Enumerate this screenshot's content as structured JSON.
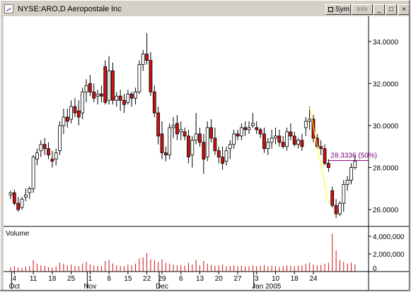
{
  "window": {
    "title": "NYSE:ARO,D Aeropostale Inc",
    "buttons": {
      "sym": "Sym",
      "intv": "Intv",
      "minimize": "_",
      "maximize": "□",
      "close": "×"
    }
  },
  "colors": {
    "up": "#ffffff",
    "down": "#cc1111",
    "outline": "#000000",
    "trendline": "#ffff00",
    "level": "#800080",
    "volume": "#cc1111"
  },
  "chart_data": {
    "type": "candlestick",
    "symbol": "NYSE:ARO,D Aeropostale Inc",
    "y_ticks": [
      "34.0000",
      "32.0000",
      "30.0000",
      "28.0000",
      "26.0000"
    ],
    "y_tick_values": [
      34,
      32,
      30,
      28,
      26
    ],
    "ylim": [
      25.2,
      35.2
    ],
    "x_day_labels": [
      "4",
      "11",
      "18",
      "25",
      "1",
      "8",
      "15",
      "22",
      "29",
      "6",
      "13",
      "20",
      "27",
      "3",
      "10",
      "18",
      "24"
    ],
    "x_day_index": [
      1,
      6,
      11,
      16,
      21,
      26,
      31,
      36,
      40,
      45,
      50,
      55,
      60,
      65,
      70,
      75,
      80
    ],
    "x_month_labels": [
      "Oct",
      "Nov",
      "Dec",
      "Jan 2005"
    ],
    "x_month_index": [
      1,
      21,
      40,
      65
    ],
    "candles": [
      [
        26.7,
        26.9,
        26.5,
        26.8
      ],
      [
        26.8,
        26.95,
        26.2,
        26.3
      ],
      [
        26.3,
        26.6,
        25.9,
        26.0
      ],
      [
        26.1,
        26.6,
        26.0,
        26.5
      ],
      [
        26.6,
        27.0,
        26.4,
        26.7
      ],
      [
        26.8,
        27.1,
        26.5,
        27.0
      ],
      [
        27.0,
        28.6,
        26.8,
        28.5
      ],
      [
        28.4,
        28.9,
        28.1,
        28.7
      ],
      [
        28.8,
        29.3,
        28.5,
        29.1
      ],
      [
        29.1,
        29.4,
        28.6,
        28.9
      ],
      [
        28.9,
        29.2,
        28.4,
        28.6
      ],
      [
        28.4,
        28.8,
        28.0,
        28.3
      ],
      [
        28.4,
        28.9,
        28.1,
        28.7
      ],
      [
        28.8,
        30.2,
        28.6,
        30.0
      ],
      [
        30.0,
        30.8,
        29.6,
        30.4
      ],
      [
        30.4,
        30.8,
        29.9,
        30.2
      ],
      [
        30.3,
        31.2,
        30.1,
        30.9
      ],
      [
        30.9,
        31.3,
        30.4,
        30.6
      ],
      [
        30.7,
        31.2,
        30.0,
        30.4
      ],
      [
        30.6,
        31.8,
        30.3,
        31.6
      ],
      [
        31.6,
        32.2,
        31.1,
        31.9
      ],
      [
        32.0,
        32.4,
        31.4,
        31.6
      ],
      [
        31.6,
        32.0,
        31.1,
        31.3
      ],
      [
        31.4,
        31.7,
        31.0,
        31.5
      ],
      [
        31.5,
        31.9,
        31.1,
        31.4
      ],
      [
        32.8,
        33.1,
        31.0,
        31.1
      ],
      [
        31.2,
        33.3,
        31.0,
        32.6
      ],
      [
        32.6,
        33.0,
        31.0,
        31.2
      ],
      [
        31.2,
        31.6,
        30.9,
        31.4
      ],
      [
        31.4,
        31.7,
        30.7,
        31.2
      ],
      [
        31.2,
        31.5,
        30.6,
        31.0
      ],
      [
        31.1,
        31.7,
        31.0,
        31.5
      ],
      [
        31.5,
        31.6,
        30.9,
        31.3
      ],
      [
        31.3,
        31.8,
        31.0,
        31.6
      ],
      [
        31.6,
        33.1,
        31.5,
        32.9
      ],
      [
        32.9,
        33.6,
        32.6,
        33.4
      ],
      [
        33.4,
        34.4,
        32.9,
        33.1
      ],
      [
        33.1,
        33.5,
        31.4,
        31.6
      ],
      [
        31.6,
        31.9,
        30.4,
        30.6
      ],
      [
        30.6,
        30.9,
        29.1,
        29.5
      ],
      [
        29.6,
        30.2,
        28.4,
        28.7
      ],
      [
        28.7,
        29.0,
        28.3,
        28.6
      ],
      [
        28.6,
        30.1,
        28.4,
        29.9
      ],
      [
        29.9,
        30.4,
        29.4,
        30.0
      ],
      [
        30.1,
        30.5,
        29.3,
        29.6
      ],
      [
        29.7,
        30.2,
        29.3,
        29.8
      ],
      [
        29.7,
        29.9,
        29.3,
        29.5
      ],
      [
        29.5,
        29.8,
        28.2,
        28.5
      ],
      [
        28.6,
        29.5,
        28.0,
        29.3
      ],
      [
        29.3,
        30.6,
        29.1,
        29.6
      ],
      [
        29.6,
        29.9,
        29.0,
        29.2
      ],
      [
        29.2,
        29.6,
        27.7,
        28.4
      ],
      [
        28.5,
        30.2,
        28.3,
        29.9
      ],
      [
        29.9,
        30.3,
        29.2,
        29.4
      ],
      [
        29.4,
        29.9,
        28.6,
        28.8
      ],
      [
        28.8,
        29.0,
        28.2,
        28.5
      ],
      [
        28.5,
        29.0,
        27.9,
        28.2
      ],
      [
        28.3,
        29.0,
        28.1,
        28.8
      ],
      [
        28.9,
        29.3,
        28.4,
        29.1
      ],
      [
        29.1,
        29.8,
        28.9,
        29.6
      ],
      [
        29.6,
        29.8,
        29.3,
        29.5
      ],
      [
        29.5,
        30.1,
        29.3,
        29.9
      ],
      [
        29.9,
        30.2,
        29.5,
        29.8
      ],
      [
        29.8,
        30.2,
        29.6,
        29.9
      ],
      [
        30.0,
        30.6,
        29.9,
        30.1
      ],
      [
        29.9,
        30.2,
        29.6,
        29.8
      ],
      [
        29.8,
        29.9,
        29.4,
        29.6
      ],
      [
        29.6,
        29.9,
        28.7,
        28.9
      ],
      [
        28.9,
        29.4,
        28.6,
        29.2
      ],
      [
        29.2,
        29.8,
        28.9,
        29.4
      ],
      [
        29.4,
        29.9,
        29.1,
        29.5
      ],
      [
        29.5,
        29.8,
        29.0,
        29.2
      ],
      [
        29.2,
        29.5,
        28.9,
        29.0
      ],
      [
        29.0,
        29.9,
        28.8,
        29.7
      ],
      [
        29.7,
        30.1,
        29.3,
        29.5
      ],
      [
        29.5,
        29.7,
        29.0,
        29.1
      ],
      [
        29.1,
        29.4,
        28.9,
        29.3
      ],
      [
        29.3,
        29.6,
        28.8,
        29.0
      ],
      [
        29.9,
        30.4,
        29.5,
        30.2
      ],
      [
        30.2,
        30.9,
        29.8,
        30.3
      ],
      [
        30.3,
        30.5,
        29.2,
        29.4
      ],
      [
        29.4,
        29.6,
        28.9,
        29.0
      ],
      [
        29.0,
        29.3,
        28.6,
        28.9
      ],
      [
        28.9,
        29.1,
        28.1,
        28.2
      ],
      [
        28.2,
        28.4,
        27.8,
        28.0
      ],
      [
        26.9,
        27.1,
        26.1,
        26.2
      ],
      [
        26.2,
        26.5,
        25.6,
        25.8
      ],
      [
        25.8,
        26.4,
        25.7,
        26.3
      ],
      [
        26.3,
        27.4,
        25.9,
        27.2
      ],
      [
        27.2,
        27.6,
        26.9,
        27.4
      ],
      [
        27.4,
        28.2,
        27.2,
        28.0
      ],
      [
        28.0,
        28.6,
        27.9,
        28.3
      ]
    ],
    "volume_panel": {
      "label": "Volume",
      "y_ticks": [
        "4,000,000",
        "2,000,000",
        "0"
      ],
      "y_tick_values": [
        4000000,
        2000000,
        0
      ],
      "ylim": [
        0,
        4800000
      ],
      "values": [
        500000,
        600000,
        450000,
        400000,
        550000,
        600000,
        1300000,
        900000,
        700000,
        650000,
        500000,
        450000,
        600000,
        1000000,
        900000,
        700000,
        800000,
        650000,
        600000,
        900000,
        1100000,
        800000,
        700000,
        650000,
        600000,
        1200000,
        1300000,
        900000,
        700000,
        650000,
        600000,
        800000,
        700000,
        900000,
        1500000,
        1600000,
        2100000,
        1400000,
        1300000,
        1100000,
        1400000,
        1000000,
        900000,
        800000,
        700000,
        750000,
        650000,
        1000000,
        800000,
        1300000,
        700000,
        1200000,
        900000,
        750000,
        650000,
        700000,
        800000,
        600000,
        650000,
        700000,
        600000,
        650000,
        550000,
        600000,
        700000,
        600000,
        650000,
        750000,
        600000,
        650000,
        600000,
        550000,
        600000,
        700000,
        650000,
        600000,
        650000,
        700000,
        900000,
        1000000,
        800000,
        700000,
        750000,
        900000,
        1000000,
        4300000,
        2400000,
        1300000,
        1100000,
        900000,
        1000000,
        800000
      ]
    },
    "annotations": [
      {
        "type": "trendline",
        "from_index": 79,
        "from_price": 30.85,
        "to_index": 84,
        "to_price": 26.3
      },
      {
        "type": "level",
        "label": "28.3336 (50%)",
        "price": 28.3336,
        "from_index": 84,
        "to_index": 91
      }
    ]
  }
}
